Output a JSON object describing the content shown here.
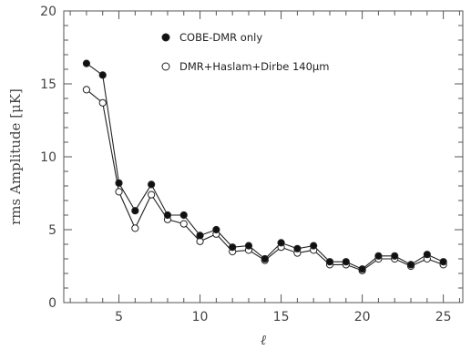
{
  "chart_data": {
    "type": "line",
    "title": "",
    "xlabel": "ℓ",
    "ylabel": "rms Amplitude [μK]",
    "xlim": [
      1.6,
      26.2
    ],
    "ylim": [
      0,
      20
    ],
    "xticks": [
      5,
      10,
      15,
      20,
      25
    ],
    "yticks": [
      0,
      5,
      10,
      15,
      20
    ],
    "legend_position": "top-center",
    "grid": false,
    "x": [
      3,
      4,
      5,
      6,
      7,
      8,
      9,
      10,
      11,
      12,
      13,
      14,
      15,
      16,
      17,
      18,
      19,
      20,
      21,
      22,
      23,
      24,
      25
    ],
    "series": [
      {
        "name": "COBE-DMR only",
        "marker": "filled-circle",
        "values": [
          16.4,
          15.6,
          8.2,
          6.3,
          8.1,
          6.0,
          6.0,
          4.6,
          5.0,
          3.8,
          3.9,
          3.0,
          4.1,
          3.7,
          3.9,
          2.8,
          2.8,
          2.3,
          3.2,
          3.2,
          2.6,
          3.3,
          2.8
        ]
      },
      {
        "name": "DMR+Haslam+Dirbe 140μm",
        "marker": "open-circle",
        "values": [
          14.6,
          13.7,
          7.6,
          5.1,
          7.4,
          5.7,
          5.4,
          4.2,
          4.7,
          3.5,
          3.6,
          2.9,
          3.8,
          3.4,
          3.6,
          2.6,
          2.6,
          2.2,
          3.0,
          3.0,
          2.5,
          3.0,
          2.6
        ]
      }
    ]
  },
  "colors": {
    "axis": "#555555",
    "line": "#222222",
    "filled_marker": "#111111",
    "open_marker_fill": "#ffffff"
  }
}
